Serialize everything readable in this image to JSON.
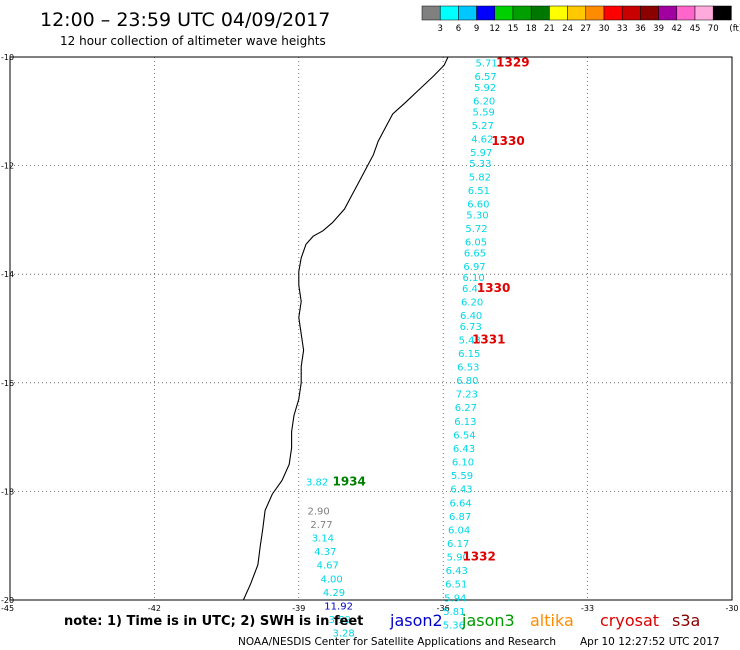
{
  "header": {
    "title": "12:00 – 23:59 UTC 04/09/2017",
    "subtitle": "12 hour collection of altimeter wave heights"
  },
  "colorbar": {
    "labels": [
      "3",
      "6",
      "9",
      "12",
      "15",
      "18",
      "21",
      "24",
      "27",
      "30",
      "33",
      "36",
      "39",
      "42",
      "45",
      "70"
    ],
    "unit": "(ft)",
    "colors": [
      "#808080",
      "#00ffff",
      "#00c8ff",
      "#0000ff",
      "#00d000",
      "#00a000",
      "#007800",
      "#ffff00",
      "#ffc800",
      "#ff8c00",
      "#ff0000",
      "#c80000",
      "#8b0000",
      "#a000a0",
      "#ff66cc",
      "#ffaadd",
      "#000000"
    ]
  },
  "chart_data": {
    "type": "scatter",
    "xlim": [
      -45,
      -30
    ],
    "ylim": [
      -20,
      -10
    ],
    "x_ticks": [
      "-42",
      "-39",
      "-36",
      "-33",
      "-30"
    ],
    "y_ticks": [
      "-10",
      "-12",
      "-14",
      "-16",
      "-18",
      "-20"
    ],
    "x_corner_label": "-45",
    "grid": true,
    "series": [
      {
        "color": "#00d8e8",
        "points": [
          {
            "x": -35.33,
            "y": -10.1,
            "label": "5.71"
          },
          {
            "x": -35.35,
            "y": -10.35,
            "label": "6.57"
          },
          {
            "x": -35.36,
            "y": -10.55,
            "label": "5.92"
          },
          {
            "x": -35.38,
            "y": -10.8,
            "label": "6.20"
          },
          {
            "x": -35.39,
            "y": -11.0,
            "label": "5.59"
          },
          {
            "x": -35.41,
            "y": -11.25,
            "label": "5.27"
          },
          {
            "x": -35.42,
            "y": -11.5,
            "label": "4.62"
          },
          {
            "x": -35.44,
            "y": -11.75,
            "label": "5.97"
          },
          {
            "x": -35.46,
            "y": -11.95,
            "label": "5.33"
          },
          {
            "x": -35.47,
            "y": -12.2,
            "label": "5.82"
          },
          {
            "x": -35.49,
            "y": -12.45,
            "label": "6.51"
          },
          {
            "x": -35.5,
            "y": -12.7,
            "label": "6.60"
          },
          {
            "x": -35.52,
            "y": -12.9,
            "label": "5.30"
          },
          {
            "x": -35.54,
            "y": -13.15,
            "label": "5.72"
          },
          {
            "x": -35.55,
            "y": -13.4,
            "label": "6.05"
          },
          {
            "x": -35.57,
            "y": -13.6,
            "label": "6.65"
          },
          {
            "x": -35.58,
            "y": -13.85,
            "label": "6.97"
          },
          {
            "x": -35.6,
            "y": -14.05,
            "label": "6.10"
          },
          {
            "x": -35.61,
            "y": -14.25,
            "label": "6.41"
          },
          {
            "x": -35.63,
            "y": -14.5,
            "label": "6.20"
          },
          {
            "x": -35.65,
            "y": -14.75,
            "label": "6.40"
          },
          {
            "x": -35.66,
            "y": -14.95,
            "label": "6.73"
          },
          {
            "x": -35.68,
            "y": -15.2,
            "label": "5.43"
          },
          {
            "x": -35.69,
            "y": -15.45,
            "label": "6.15"
          },
          {
            "x": -35.71,
            "y": -15.7,
            "label": "6.53"
          },
          {
            "x": -35.73,
            "y": -15.95,
            "label": "6.80"
          },
          {
            "x": -35.74,
            "y": -16.2,
            "label": "7.23"
          },
          {
            "x": -35.76,
            "y": -16.45,
            "label": "6.27"
          },
          {
            "x": -35.77,
            "y": -16.7,
            "label": "6.13"
          },
          {
            "x": -35.79,
            "y": -16.95,
            "label": "6.54"
          },
          {
            "x": -35.8,
            "y": -17.2,
            "label": "6.43"
          },
          {
            "x": -35.82,
            "y": -17.45,
            "label": "6.10"
          },
          {
            "x": -35.84,
            "y": -17.7,
            "label": "5.59"
          },
          {
            "x": -35.85,
            "y": -17.95,
            "label": "6.43"
          },
          {
            "x": -35.87,
            "y": -18.2,
            "label": "6.64"
          },
          {
            "x": -35.88,
            "y": -18.45,
            "label": "6.87"
          },
          {
            "x": -35.9,
            "y": -18.7,
            "label": "6.04"
          },
          {
            "x": -35.92,
            "y": -18.95,
            "label": "6.17"
          },
          {
            "x": -35.93,
            "y": -19.2,
            "label": "5.90"
          },
          {
            "x": -35.95,
            "y": -19.45,
            "label": "6.43"
          },
          {
            "x": -35.96,
            "y": -19.7,
            "label": "6.51"
          },
          {
            "x": -35.98,
            "y": -19.95,
            "label": "5.94"
          },
          {
            "x": -36.0,
            "y": -20.2,
            "label": "5.81"
          },
          {
            "x": -36.01,
            "y": -20.45,
            "label": "5.36"
          }
        ]
      },
      {
        "color": "#00d8e8",
        "points": [
          {
            "x": -38.85,
            "y": -17.82,
            "label": "3.82"
          },
          {
            "x": -38.73,
            "y": -18.85,
            "label": "3.14"
          },
          {
            "x": -38.68,
            "y": -19.1,
            "label": "4.37"
          },
          {
            "x": -38.63,
            "y": -19.35,
            "label": "4.67"
          },
          {
            "x": -38.55,
            "y": -19.6,
            "label": "4.00"
          },
          {
            "x": -38.5,
            "y": -19.85,
            "label": "4.29"
          },
          {
            "x": -38.38,
            "y": -20.35,
            "label": "3.59"
          },
          {
            "x": -38.3,
            "y": -20.6,
            "label": "3.28"
          }
        ]
      },
      {
        "color": "#808080",
        "points": [
          {
            "x": -38.82,
            "y": -18.35,
            "label": "2.90"
          },
          {
            "x": -38.76,
            "y": -18.6,
            "label": "2.77"
          }
        ]
      },
      {
        "color": "#0000c8",
        "points": [
          {
            "x": -38.47,
            "y": -20.1,
            "label": "11.92"
          }
        ]
      }
    ],
    "pass_labels": [
      {
        "x": -34.9,
        "y": -10.1,
        "text": "1329",
        "color": "#e00000"
      },
      {
        "x": -35.0,
        "y": -11.55,
        "text": "1330",
        "color": "#e00000"
      },
      {
        "x": -35.3,
        "y": -14.25,
        "text": "1330",
        "color": "#e00000"
      },
      {
        "x": -35.4,
        "y": -15.2,
        "text": "1331",
        "color": "#e00000"
      },
      {
        "x": -35.6,
        "y": -19.2,
        "text": "1332",
        "color": "#e00000"
      },
      {
        "x": -38.3,
        "y": -17.82,
        "text": "1934",
        "color": "#008000"
      }
    ],
    "coastline": [
      [
        -35.9,
        -10.0
      ],
      [
        -35.98,
        -10.15
      ],
      [
        -36.2,
        -10.35
      ],
      [
        -36.5,
        -10.6
      ],
      [
        -36.8,
        -10.85
      ],
      [
        -37.05,
        -11.05
      ],
      [
        -37.2,
        -11.3
      ],
      [
        -37.35,
        -11.55
      ],
      [
        -37.45,
        -11.8
      ],
      [
        -37.6,
        -12.05
      ],
      [
        -37.75,
        -12.3
      ],
      [
        -37.9,
        -12.55
      ],
      [
        -38.05,
        -12.8
      ],
      [
        -38.3,
        -13.05
      ],
      [
        -38.5,
        -13.2
      ],
      [
        -38.7,
        -13.3
      ],
      [
        -38.85,
        -13.45
      ],
      [
        -38.95,
        -13.7
      ],
      [
        -39.0,
        -13.95
      ],
      [
        -39.0,
        -14.2
      ],
      [
        -38.95,
        -14.5
      ],
      [
        -39.0,
        -14.8
      ],
      [
        -38.95,
        -15.1
      ],
      [
        -38.9,
        -15.4
      ],
      [
        -38.95,
        -15.7
      ],
      [
        -38.95,
        -16.0
      ],
      [
        -39.0,
        -16.3
      ],
      [
        -39.1,
        -16.6
      ],
      [
        -39.15,
        -16.9
      ],
      [
        -39.15,
        -17.2
      ],
      [
        -39.2,
        -17.5
      ],
      [
        -39.35,
        -17.8
      ],
      [
        -39.55,
        -18.05
      ],
      [
        -39.7,
        -18.35
      ],
      [
        -39.75,
        -18.7
      ],
      [
        -39.8,
        -19.0
      ],
      [
        -39.85,
        -19.35
      ],
      [
        -40.0,
        -19.7
      ],
      [
        -40.15,
        -20.0
      ]
    ]
  },
  "legend": {
    "note": "note: 1) Time is in UTC; 2) SWH is in feet",
    "satellites": [
      {
        "name": "jason2",
        "color": "#0000cc"
      },
      {
        "name": "jason3",
        "color": "#009900"
      },
      {
        "name": "altika",
        "color": "#ff8c00"
      },
      {
        "name": "cryosat",
        "color": "#dd0000"
      },
      {
        "name": "s3a",
        "color": "#880000"
      }
    ]
  },
  "footer": {
    "credit": "NOAA/NESDIS Center for Satellite Applications and Research",
    "timestamp": "Apr 10 12:27:52 UTC 2017"
  }
}
